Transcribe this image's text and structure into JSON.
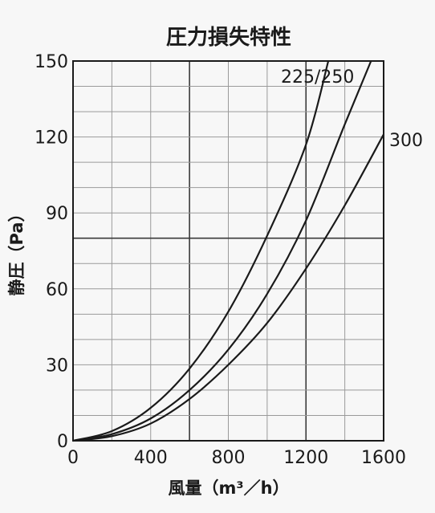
{
  "chart_data": {
    "type": "line",
    "title": "圧力損失特性",
    "xlabel": "風量（m³／h）",
    "ylabel": "静圧（Pa）",
    "xlim": [
      0,
      1600
    ],
    "ylim": [
      0,
      150
    ],
    "x_ticks": [
      0,
      400,
      800,
      1200,
      1600
    ],
    "y_ticks": [
      0,
      30,
      60,
      90,
      120,
      150
    ],
    "x_tick_labels": [
      "0",
      "400",
      "800",
      "1200",
      "1600"
    ],
    "y_tick_labels": [
      "0",
      "30",
      "60",
      "90",
      "120",
      "150"
    ],
    "grid": true,
    "legend": "none",
    "colors": {
      "line": "#1a1a1a",
      "grid": "#9a9a9a",
      "major_grid": "#3a3a3a",
      "background": "#f7f7f7"
    },
    "series": [
      {
        "name": "225",
        "x": [
          0,
          200,
          400,
          600,
          800,
          1000,
          1200,
          1315
        ],
        "y": [
          0,
          3.8,
          13,
          28.5,
          51,
          81,
          117,
          150
        ]
      },
      {
        "name": "250",
        "x": [
          0,
          200,
          400,
          600,
          800,
          1000,
          1200,
          1400,
          1535
        ],
        "y": [
          0,
          2.6,
          8.8,
          20,
          36,
          58,
          87,
          125,
          150
        ]
      },
      {
        "name": "300",
        "x": [
          0,
          200,
          400,
          600,
          800,
          1000,
          1200,
          1400,
          1600
        ],
        "y": [
          0,
          1.8,
          6.8,
          16.5,
          30,
          46.5,
          68,
          93,
          121
        ]
      }
    ],
    "series_labels": {
      "pair": "225/250",
      "single": "300"
    }
  }
}
